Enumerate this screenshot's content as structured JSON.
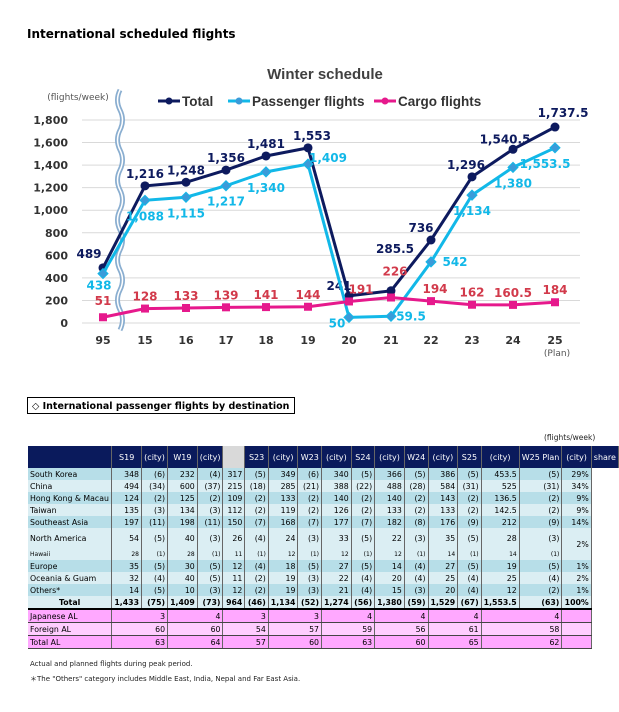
{
  "page_title": "International scheduled flights",
  "chart_data": {
    "type": "line",
    "title": "Winter schedule",
    "ylabel": "(flights/week)",
    "xlabel": "(Plan)",
    "categories": [
      "95",
      "15",
      "16",
      "17",
      "18",
      "19",
      "20",
      "21",
      "22",
      "23",
      "24",
      "25"
    ],
    "yticks": [
      "0",
      "200",
      "400",
      "600",
      "800",
      "1,000",
      "1,200",
      "1,400",
      "1,600",
      "1,800"
    ],
    "ylim": [
      0,
      1800
    ],
    "grid": true,
    "axis_break": "between 95 and 15",
    "legend_position": "top",
    "series": [
      {
        "name": "Total",
        "color": "#0d1a5e",
        "marker": "circle",
        "values": [
          489,
          1216,
          1248,
          1356,
          1481,
          1553,
          241,
          285.5,
          736,
          1296,
          1540.5,
          1737.5
        ],
        "labels": [
          "489",
          "1,216",
          "1,248",
          "1,356",
          "1,481",
          "1,553",
          "241",
          "285.5",
          "736",
          "1,296",
          "1,540.5",
          "1,737.5"
        ]
      },
      {
        "name": "Passenger flights",
        "color": "#12b8e8",
        "marker": "diamond",
        "values": [
          438,
          1088,
          1115,
          1217,
          1340,
          1409,
          50,
          59.5,
          542,
          1134,
          1380,
          1553.5
        ],
        "labels": [
          "438",
          "1,088",
          "1,115",
          "1,217",
          "1,340",
          "1,409",
          "50",
          "59.5",
          "542",
          "1,134",
          "1,380",
          "1,553.5"
        ]
      },
      {
        "name": "Cargo flights",
        "color": "#e6198c",
        "marker": "square",
        "values": [
          51,
          128,
          133,
          139,
          141,
          144,
          191,
          226,
          194,
          162,
          160.5,
          184
        ],
        "labels": [
          "51",
          "128",
          "133",
          "139",
          "141",
          "144",
          "191",
          "226",
          "194",
          "162",
          "160.5",
          "184"
        ]
      }
    ]
  },
  "section_title": "◇ International passenger flights by destination",
  "table_unit": "(flights/week)",
  "table": {
    "headers": [
      "",
      "S19",
      "(city)",
      "W19",
      "(city)",
      "S23",
      "(city)",
      "W23",
      "(city)",
      "S24",
      "(city)",
      "W24",
      "(city)",
      "S25",
      "(city)",
      "W25 Plan",
      "(city)",
      "share"
    ],
    "rows": [
      [
        "South Korea",
        "348",
        "(6)",
        "232",
        "(4)",
        "317",
        "(5)",
        "349",
        "(6)",
        "340",
        "(5)",
        "366",
        "(5)",
        "386",
        "(5)",
        "453.5",
        "(5)",
        "29%"
      ],
      [
        "China",
        "494",
        "(34)",
        "600",
        "(37)",
        "215",
        "(18)",
        "285",
        "(21)",
        "388",
        "(22)",
        "488",
        "(28)",
        "584",
        "(31)",
        "525",
        "(31)",
        "34%"
      ],
      [
        "Hong Kong & Macau",
        "124",
        "(2)",
        "125",
        "(2)",
        "109",
        "(2)",
        "133",
        "(2)",
        "140",
        "(2)",
        "140",
        "(2)",
        "143",
        "(2)",
        "136.5",
        "(2)",
        "9%"
      ],
      [
        "Taiwan",
        "135",
        "(3)",
        "134",
        "(3)",
        "112",
        "(2)",
        "119",
        "(2)",
        "126",
        "(2)",
        "133",
        "(2)",
        "133",
        "(2)",
        "142.5",
        "(2)",
        "9%"
      ],
      [
        "Southeast Asia",
        "197",
        "(11)",
        "198",
        "(11)",
        "150",
        "(7)",
        "168",
        "(7)",
        "177",
        "(7)",
        "182",
        "(8)",
        "176",
        "(9)",
        "212",
        "(9)",
        "14%"
      ],
      [
        "North America",
        "54",
        "(5)",
        "40",
        "(3)",
        "26",
        "(4)",
        "24",
        "(3)",
        "33",
        "(5)",
        "22",
        "(3)",
        "35",
        "(5)",
        "28",
        "(3)",
        "2%"
      ],
      [
        "Hawaii",
        "28",
        "(1)",
        "28",
        "(1)",
        "11",
        "(1)",
        "12",
        "(1)",
        "12",
        "(1)",
        "12",
        "(1)",
        "14",
        "(1)",
        "14",
        "(1)",
        ""
      ],
      [
        "Europe",
        "35",
        "(5)",
        "30",
        "(5)",
        "12",
        "(4)",
        "18",
        "(5)",
        "27",
        "(5)",
        "14",
        "(4)",
        "27",
        "(5)",
        "19",
        "(5)",
        "1%"
      ],
      [
        "Oceania & Guam",
        "32",
        "(4)",
        "40",
        "(5)",
        "11",
        "(2)",
        "19",
        "(3)",
        "22",
        "(4)",
        "20",
        "(4)",
        "25",
        "(4)",
        "25",
        "(4)",
        "2%"
      ],
      [
        "Others*",
        "14",
        "(5)",
        "10",
        "(3)",
        "12",
        "(2)",
        "19",
        "(3)",
        "21",
        "(4)",
        "15",
        "(3)",
        "20",
        "(4)",
        "12",
        "(2)",
        "1%"
      ],
      [
        "Total",
        "1,433",
        "(75)",
        "1,409",
        "(73)",
        "964",
        "(46)",
        "1,134",
        "(52)",
        "1,274",
        "(56)",
        "1,380",
        "(59)",
        "1,529",
        "(67)",
        "1,553.5",
        "(63)",
        "100%"
      ]
    ],
    "airline_rows": [
      [
        "Japanese AL",
        "3",
        "4",
        "3",
        "3",
        "4",
        "4",
        "4",
        "4"
      ],
      [
        "Foreign AL",
        "60",
        "60",
        "54",
        "57",
        "59",
        "56",
        "61",
        "58"
      ],
      [
        "Total AL",
        "63",
        "64",
        "57",
        "60",
        "63",
        "60",
        "65",
        "62"
      ]
    ]
  },
  "notes": [
    "Actual and planned flights during peak period.",
    "＊The \"Others\" category includes Middle East, India, Nepal and Far East Asia."
  ]
}
